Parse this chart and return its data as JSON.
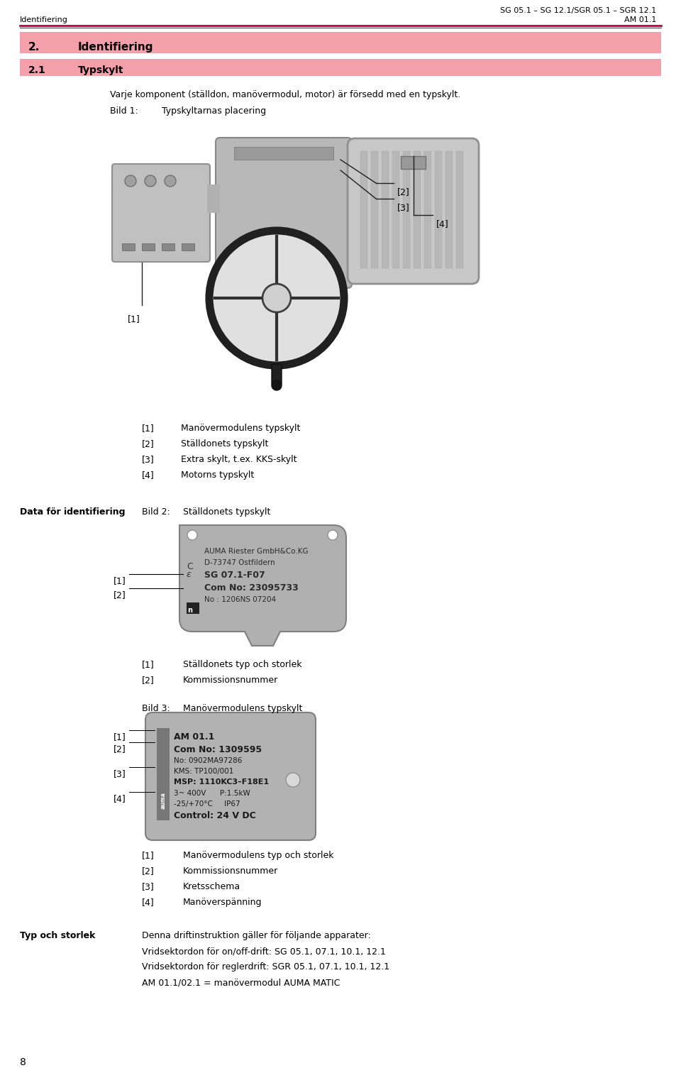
{
  "page_width": 9.6,
  "page_height": 15.05,
  "dpi": 100,
  "bg": "#ffffff",
  "header_line_color": "#c0003c",
  "hdr_right1": "SG 05.1 – SG 12.1/SGR 05.1 – SGR 12.1",
  "hdr_right2": "AM 01.1",
  "hdr_left": "Identifiering",
  "sec_bg": "#f4a0aa",
  "sec_num": "2.",
  "sec_title": "Identifiering",
  "sub_num": "2.1",
  "sub_title": "Typskylt",
  "intro": "Varje komponent (ställdon, manövermodul, motor) är försedd med en typskylt.",
  "bild1_lbl": "Bild 1:",
  "bild1_ttl": "Typskyltarnas placering",
  "list1": [
    {
      "n": "[1]",
      "t": "Manövermodulens typskylt"
    },
    {
      "n": "[2]",
      "t": "Ställdonets typskylt"
    },
    {
      "n": "[3]",
      "t": "Extra skylt, t.ex. KKS-skylt"
    },
    {
      "n": "[4]",
      "t": "Motorns typskylt"
    }
  ],
  "data_lbl": "Data för identifiering",
  "bild2_lbl": "Bild 2:",
  "bild2_ttl": "Ställdonets typskylt",
  "p2_lines": [
    {
      "txt": "AUMA Riester GmbH&Co.KG",
      "bold": false,
      "size": 7.5
    },
    {
      "txt": "D-73747 Ostfildern",
      "bold": false,
      "size": 7.5
    },
    {
      "txt": "SG 07.1-F07",
      "bold": true,
      "size": 9
    },
    {
      "txt": "Com No: 23095733",
      "bold": true,
      "size": 9
    },
    {
      "txt": "No : 1206NS 07204",
      "bold": false,
      "size": 7.5
    }
  ],
  "list2": [
    {
      "n": "[1]",
      "t": "Ställdonets typ och storlek"
    },
    {
      "n": "[2]",
      "t": "Kommissionsnummer"
    }
  ],
  "bild3_lbl": "Bild 3:",
  "bild3_ttl": "Manövermodulens typskylt",
  "p3_lines": [
    {
      "txt": "AM 01.1",
      "bold": true,
      "size": 9
    },
    {
      "txt": "Com No: 1309595",
      "bold": true,
      "size": 9
    },
    {
      "txt": "No: 0902MA97286",
      "bold": false,
      "size": 7.5
    },
    {
      "txt": "KMS: TP100/001",
      "bold": false,
      "size": 7.5
    },
    {
      "txt": "MSP: 1110KC3–F18E1",
      "bold": true,
      "size": 8
    },
    {
      "txt": "3~ 400V      P:1.5kW",
      "bold": false,
      "size": 7.5
    },
    {
      "txt": "-25/+70°C     IP67",
      "bold": false,
      "size": 7.5
    },
    {
      "txt": "Control: 24 V DC",
      "bold": true,
      "size": 9
    }
  ],
  "list3": [
    {
      "n": "[1]",
      "t": "Manövermodulens typ och storlek"
    },
    {
      "n": "[2]",
      "t": "Kommissionsnummer"
    },
    {
      "n": "[3]",
      "t": "Kretsschema"
    },
    {
      "n": "[4]",
      "t": "Manöverspänning"
    }
  ],
  "typ_lbl": "Typ och storlek",
  "typ_lines": [
    "Denna driftinstruktion gäller för följande apparater:",
    "Vridsektordon för on/off-drift: SG 05.1, 07.1, 10.1, 12.1",
    "Vridsektordon för reglerdrift: SGR 05.1, 07.1, 10.1, 12.1",
    "AM 01.1/02.1 = manövermodul AUMA MATIC"
  ],
  "footer": "8",
  "plate_bg": "#b0b0b0",
  "plate_border": "#808080"
}
